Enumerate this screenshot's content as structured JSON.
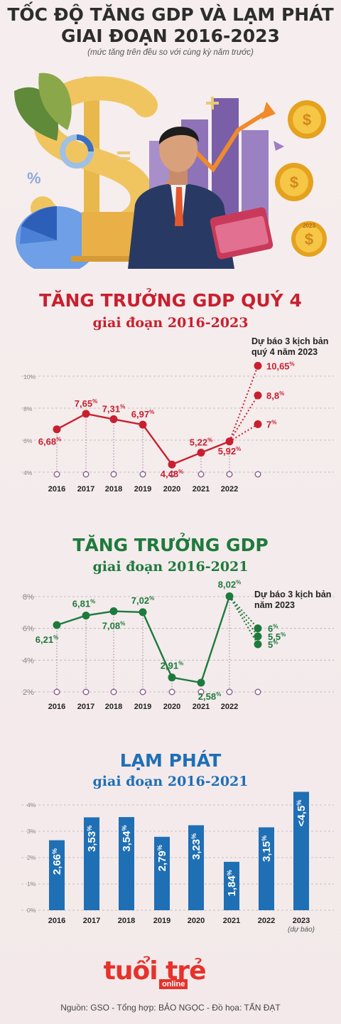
{
  "header": {
    "title_line1": "TỐC ĐỘ TĂNG GDP VÀ LẠM PHÁT",
    "title_line2": "GIAI ĐOẠN 2016-2023",
    "subtitle": "(mức tăng trên đều so với cùng kỳ năm trước)"
  },
  "hero": {
    "icons": [
      "dollar-sign-icon",
      "businessman-icon",
      "laptop-icon",
      "coin-icon",
      "pie-chart-icon",
      "rising-arrow-icon",
      "percent-icon",
      "money-stack-icon"
    ],
    "coin_label": "2023"
  },
  "colors": {
    "red": "#c8202f",
    "green": "#1e7a3c",
    "blue": "#1f6fb5",
    "purple": "#8a5a8a"
  },
  "chart_data": [
    {
      "type": "line",
      "title": "TĂNG TRƯỞNG GDP QUÝ 4",
      "subtitle": "giai đoạn 2016-2023",
      "categories": [
        "2016",
        "2017",
        "2018",
        "2019",
        "2020",
        "2021",
        "2022"
      ],
      "series": [
        {
          "values": [
            6.68,
            7.65,
            7.31,
            6.97,
            4.48,
            5.22,
            5.92
          ]
        }
      ],
      "value_labels": [
        "6,68",
        "7,65",
        "7,31",
        "6,97",
        "4,48",
        "5,22",
        "5,92"
      ],
      "forecast_note": [
        "Dự báo 3 kịch bản",
        "quý 4 năm 2023"
      ],
      "forecast": {
        "values": [
          10.65,
          8.8,
          7
        ],
        "labels": [
          "10,65",
          "8,8",
          "7"
        ]
      },
      "ylim": [
        4,
        10
      ],
      "yticks": [
        4,
        6,
        8,
        10
      ],
      "ytick_labels": [
        "4%",
        "6%",
        "8%",
        "10%"
      ],
      "unit": "%",
      "grid": true
    },
    {
      "type": "line",
      "title": "TĂNG TRƯỞNG GDP",
      "subtitle": "giai đoạn 2016-2021",
      "categories": [
        "2016",
        "2017",
        "2018",
        "2019",
        "2020",
        "2021",
        "2022"
      ],
      "series": [
        {
          "values": [
            6.21,
            6.81,
            7.08,
            7.02,
            2.91,
            2.58,
            8.02
          ]
        }
      ],
      "value_labels": [
        "6,21",
        "6,81",
        "7,08",
        "7,02",
        "2,91",
        "2,58",
        "8,02"
      ],
      "forecast_note": [
        "Dự báo 3 kịch bản",
        "năm 2023"
      ],
      "forecast": {
        "values": [
          6,
          5.5,
          5
        ],
        "labels": [
          "6",
          "5,5",
          "5"
        ]
      },
      "ylim": [
        2,
        8
      ],
      "yticks": [
        2,
        4,
        6,
        8
      ],
      "ytick_labels": [
        "2%",
        "4%",
        "6%",
        "8%"
      ],
      "unit": "%",
      "grid": true
    },
    {
      "type": "bar",
      "title": "LẠM PHÁT",
      "subtitle": "giai đoạn 2016-2021",
      "categories": [
        "2016",
        "2017",
        "2018",
        "2019",
        "2020",
        "2021",
        "2022",
        "2023"
      ],
      "category_note": "(dự báo)",
      "values": [
        2.66,
        3.53,
        3.54,
        2.79,
        3.23,
        1.84,
        3.15,
        4.5
      ],
      "value_labels": [
        "2,66",
        "3,53",
        "3,54",
        "2,79",
        "3,23",
        "1,84",
        "3,15",
        "<4,5"
      ],
      "ylim": [
        0,
        4
      ],
      "yticks": [
        0,
        1,
        2,
        3,
        4
      ],
      "ytick_labels": [
        "0%",
        "1%",
        "2%",
        "3%",
        "4%"
      ],
      "unit": "%",
      "grid": true
    }
  ],
  "logo": {
    "brand": "tuổi trẻ",
    "tag": "online"
  },
  "footer": {
    "source": "Nguồn: GSO - Tổng hợp: BẢO NGỌC - Đồ họa: TẤN ĐẠT"
  }
}
